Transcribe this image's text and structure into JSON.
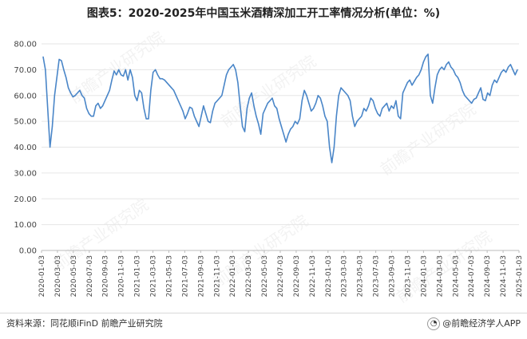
{
  "title": "图表5：2020-2025年中国玉米酒精深加工开工率情况分析(单位：%)",
  "source": "资料来源：同花顺iFinD 前瞻产业研究院",
  "brand": "@前瞻经济学人APP",
  "brand_icon": "qianzhan-logo-icon",
  "chart_data": {
    "type": "line",
    "title": "图表5：2020-2025年中国玉米酒精深加工开工率情况分析(单位：%)",
    "xlabel": "",
    "ylabel": "",
    "ylim": [
      0,
      80
    ],
    "yticks": [
      "0.00",
      "10.00",
      "20.00",
      "30.00",
      "40.00",
      "50.00",
      "60.00",
      "70.00",
      "80.00"
    ],
    "ytick_values": [
      0,
      10,
      20,
      30,
      40,
      50,
      60,
      70,
      80
    ],
    "xtick_labels": [
      "2020-01-03",
      "2020-03-03",
      "2020-05-03",
      "2020-07-03",
      "2020-09-03",
      "2020-11-03",
      "2021-01-03",
      "2021-03-03",
      "2021-05-03",
      "2021-07-03",
      "2021-09-03",
      "2021-11-03",
      "2022-01-03",
      "2022-03-03",
      "2022-05-03",
      "2022-07-03",
      "2022-09-03",
      "2022-11-03",
      "2023-01-03",
      "2023-03-03",
      "2023-05-03",
      "2023-07-03",
      "2023-09-03",
      "2023-11-03",
      "2024-01-03",
      "2024-03-03",
      "2024-05-03",
      "2024-07-03",
      "2024-09-03",
      "2024-11-03",
      "2025-01-03"
    ],
    "grid": "horizontal",
    "legend": "none",
    "line_color": "#4a86c8",
    "series": [
      {
        "values": [
          75,
          70,
          55,
          40,
          48,
          60,
          67,
          74,
          73.5,
          70,
          67,
          63,
          61,
          59.5,
          60,
          61,
          62,
          60,
          59,
          55,
          53,
          52,
          52,
          56,
          57,
          55,
          56,
          58,
          60,
          62,
          66,
          69.5,
          68,
          70,
          68,
          67.5,
          70,
          66,
          70,
          67,
          60,
          58,
          62,
          61,
          55,
          51,
          51,
          62,
          69,
          70,
          68,
          66.5,
          66.5,
          66,
          65,
          64,
          63,
          62,
          60,
          58,
          56,
          54,
          51,
          53,
          55.5,
          55,
          52,
          50,
          48,
          52,
          56,
          53,
          50,
          49.5,
          54,
          57,
          58,
          59,
          60,
          64,
          68,
          70,
          71,
          72,
          70,
          65,
          56,
          48,
          46,
          55,
          59,
          61,
          56,
          52,
          49,
          45,
          53,
          55,
          57,
          58,
          59,
          56,
          55,
          51,
          48,
          45,
          42,
          45,
          47,
          48,
          50,
          49,
          51,
          58,
          62,
          60,
          57,
          54,
          55,
          57,
          60,
          59,
          56,
          52,
          50,
          40,
          34,
          40,
          52,
          60,
          63,
          62,
          61,
          60,
          58,
          52,
          48,
          50,
          51,
          52,
          55,
          54,
          56,
          59,
          58,
          55,
          53,
          52,
          55,
          56,
          57,
          54,
          56,
          55,
          58,
          52,
          51,
          61,
          63,
          65,
          66,
          64,
          65.5,
          67,
          68,
          70,
          73,
          75,
          76,
          60,
          57,
          63,
          68,
          70,
          71,
          70,
          72,
          73,
          71,
          70,
          68,
          67,
          65,
          62,
          60,
          59,
          58,
          57,
          58.5,
          59,
          61,
          63,
          58.5,
          58,
          61,
          60,
          64,
          66,
          65,
          67,
          69,
          70,
          69,
          71,
          72,
          70,
          68,
          70
        ]
      }
    ]
  },
  "watermarks": [
    "前瞻产业研究院",
    "前瞻产业研究院",
    "前瞻产业研究院",
    "前瞻产业研究院",
    "前瞻产业研究院",
    "前瞻产业研究院"
  ]
}
